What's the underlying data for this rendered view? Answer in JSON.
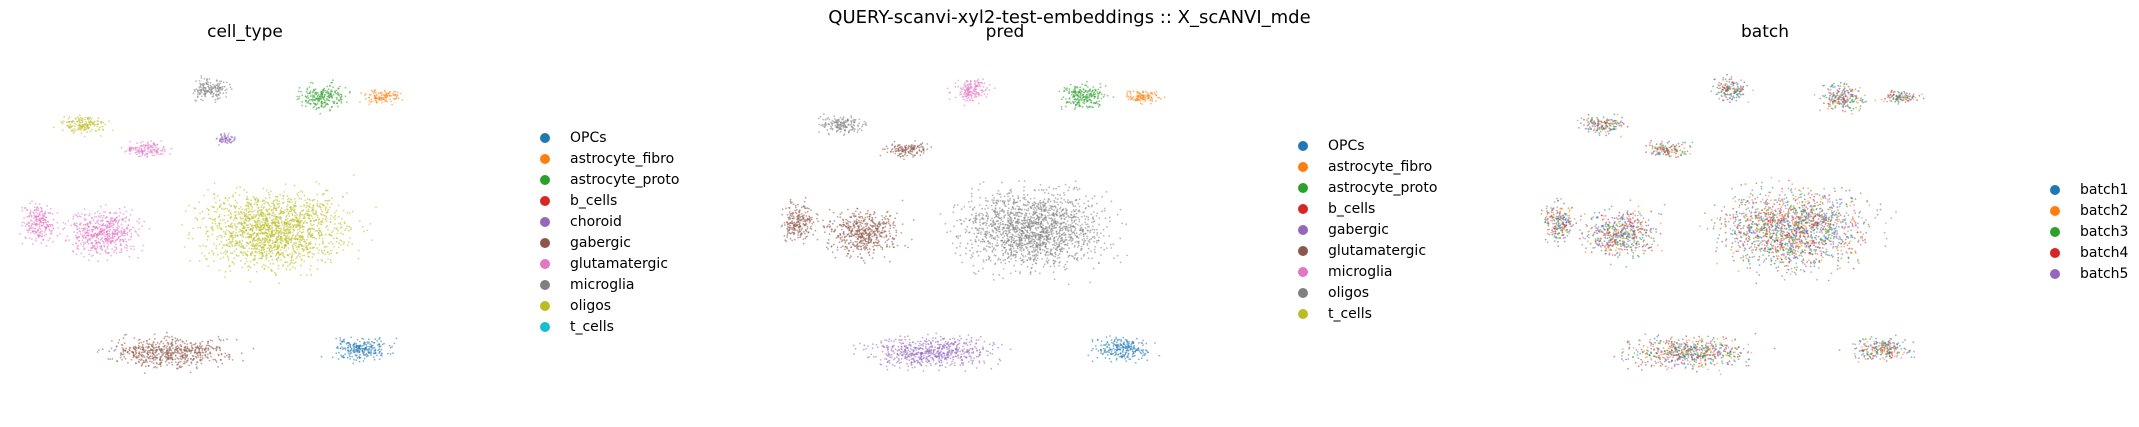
{
  "suptitle": "QUERY-scanvi-xyl2-test-embeddings :: X_scANVI_mde",
  "chart_data": [
    {
      "type": "scatter",
      "title": "cell_type",
      "legend_placement": "right",
      "grid": false,
      "categories": [
        "OPCs",
        "astrocyte_fibro",
        "astrocyte_proto",
        "b_cells",
        "choroid",
        "gabergic",
        "glutamatergic",
        "microglia",
        "oligos",
        "t_cells"
      ],
      "colors": [
        "#1f77b4",
        "#ff7f0e",
        "#2ca02c",
        "#d62728",
        "#9467bd",
        "#8c564b",
        "#e377c2",
        "#7f7f7f",
        "#bcbd22",
        "#17becf"
      ],
      "clusters": [
        {
          "category": "oligos",
          "x": 0.56,
          "y": 0.5,
          "w": 0.4,
          "h": 0.3
        },
        {
          "category": "oligos",
          "x": 0.17,
          "y": 0.2,
          "w": 0.13,
          "h": 0.07
        },
        {
          "category": "microglia",
          "x": 0.43,
          "y": 0.1,
          "w": 0.1,
          "h": 0.09
        },
        {
          "category": "astrocyte_proto",
          "x": 0.66,
          "y": 0.12,
          "w": 0.13,
          "h": 0.1
        },
        {
          "category": "astrocyte_fibro",
          "x": 0.78,
          "y": 0.12,
          "w": 0.1,
          "h": 0.05
        },
        {
          "category": "glutamatergic",
          "x": 0.21,
          "y": 0.51,
          "w": 0.2,
          "h": 0.18
        },
        {
          "category": "glutamatergic",
          "x": 0.08,
          "y": 0.48,
          "w": 0.09,
          "h": 0.15
        },
        {
          "category": "glutamatergic",
          "x": 0.3,
          "y": 0.27,
          "w": 0.12,
          "h": 0.06
        },
        {
          "category": "gabergic",
          "x": 0.35,
          "y": 0.85,
          "w": 0.34,
          "h": 0.12
        },
        {
          "category": "OPCs",
          "x": 0.74,
          "y": 0.84,
          "w": 0.16,
          "h": 0.09
        },
        {
          "category": "choroid",
          "x": 0.46,
          "y": 0.24,
          "w": 0.05,
          "h": 0.04
        }
      ]
    },
    {
      "type": "scatter",
      "title": "pred",
      "legend_placement": "right",
      "grid": false,
      "categories": [
        "OPCs",
        "astrocyte_fibro",
        "astrocyte_proto",
        "b_cells",
        "gabergic",
        "glutamatergic",
        "microglia",
        "oligos",
        "t_cells"
      ],
      "colors": [
        "#1f77b4",
        "#ff7f0e",
        "#2ca02c",
        "#d62728",
        "#9467bd",
        "#8c564b",
        "#e377c2",
        "#7f7f7f",
        "#bcbd22"
      ],
      "clusters": [
        {
          "category": "oligos",
          "x": 0.56,
          "y": 0.5,
          "w": 0.4,
          "h": 0.3
        },
        {
          "category": "oligos",
          "x": 0.17,
          "y": 0.2,
          "w": 0.13,
          "h": 0.07
        },
        {
          "category": "microglia",
          "x": 0.43,
          "y": 0.1,
          "w": 0.1,
          "h": 0.09
        },
        {
          "category": "astrocyte_proto",
          "x": 0.66,
          "y": 0.12,
          "w": 0.13,
          "h": 0.1
        },
        {
          "category": "astrocyte_fibro",
          "x": 0.78,
          "y": 0.12,
          "w": 0.1,
          "h": 0.05
        },
        {
          "category": "glutamatergic",
          "x": 0.21,
          "y": 0.51,
          "w": 0.2,
          "h": 0.18
        },
        {
          "category": "glutamatergic",
          "x": 0.08,
          "y": 0.48,
          "w": 0.09,
          "h": 0.15
        },
        {
          "category": "glutamatergic",
          "x": 0.3,
          "y": 0.27,
          "w": 0.12,
          "h": 0.06
        },
        {
          "category": "gabergic",
          "x": 0.35,
          "y": 0.85,
          "w": 0.34,
          "h": 0.12
        },
        {
          "category": "OPCs",
          "x": 0.74,
          "y": 0.84,
          "w": 0.16,
          "h": 0.09
        }
      ]
    },
    {
      "type": "scatter",
      "title": "batch",
      "legend_placement": "right",
      "grid": false,
      "categories": [
        "batch1",
        "batch2",
        "batch3",
        "batch4",
        "batch5"
      ],
      "colors": [
        "#1f77b4",
        "#ff7f0e",
        "#2ca02c",
        "#d62728",
        "#9467bd"
      ],
      "clusters": [
        {
          "category": "mixed",
          "x": 0.56,
          "y": 0.5,
          "w": 0.4,
          "h": 0.3
        },
        {
          "category": "mixed",
          "x": 0.17,
          "y": 0.2,
          "w": 0.13,
          "h": 0.07
        },
        {
          "category": "mixed",
          "x": 0.43,
          "y": 0.1,
          "w": 0.1,
          "h": 0.09
        },
        {
          "category": "mixed",
          "x": 0.66,
          "y": 0.12,
          "w": 0.13,
          "h": 0.1
        },
        {
          "category": "mixed",
          "x": 0.78,
          "y": 0.12,
          "w": 0.1,
          "h": 0.05
        },
        {
          "category": "mixed",
          "x": 0.21,
          "y": 0.51,
          "w": 0.2,
          "h": 0.18
        },
        {
          "category": "mixed",
          "x": 0.08,
          "y": 0.48,
          "w": 0.09,
          "h": 0.15
        },
        {
          "category": "mixed",
          "x": 0.3,
          "y": 0.27,
          "w": 0.12,
          "h": 0.06
        },
        {
          "category": "mixed",
          "x": 0.35,
          "y": 0.85,
          "w": 0.34,
          "h": 0.12
        },
        {
          "category": "mixed",
          "x": 0.74,
          "y": 0.84,
          "w": 0.16,
          "h": 0.09
        }
      ]
    }
  ]
}
